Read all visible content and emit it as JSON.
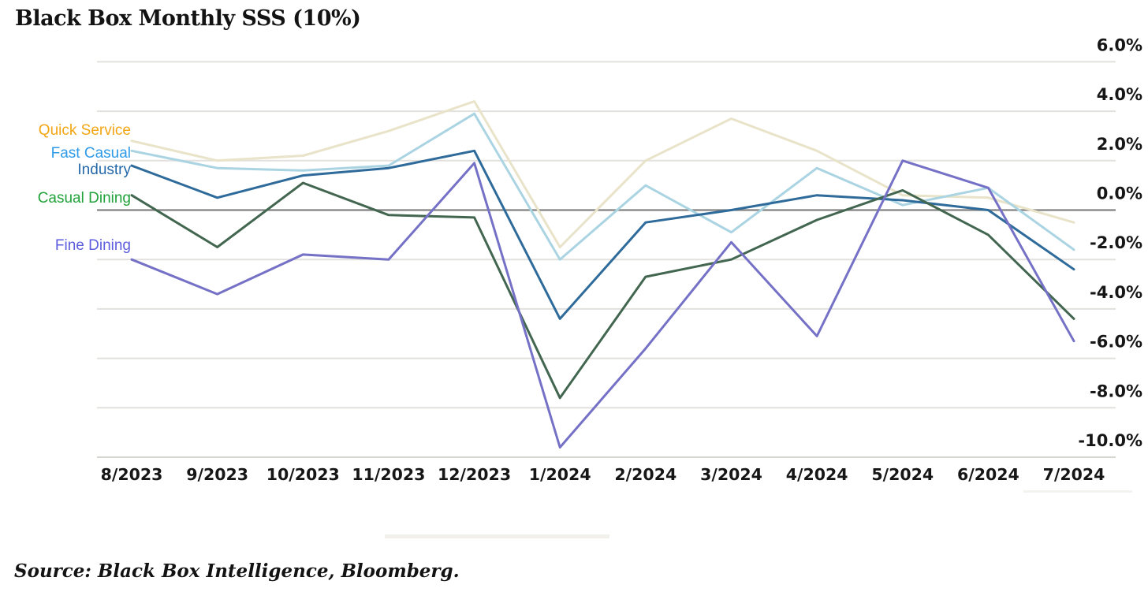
{
  "title": "Black Box Monthly SSS (10%)",
  "source": "Source: Black Box Intelligence, Bloomberg.",
  "chart_data": {
    "type": "line",
    "title": "Black Box Monthly SSS (10%)",
    "x": [
      "8/2023",
      "9/2023",
      "10/2023",
      "11/2023",
      "12/2023",
      "1/2024",
      "2/2024",
      "3/2024",
      "4/2024",
      "5/2024",
      "6/2024",
      "7/2024"
    ],
    "series": [
      {
        "name": "Quick Service",
        "line_color": "#e8e3c9",
        "label_color": "#f2a614",
        "values": [
          2.8,
          2.0,
          2.2,
          3.2,
          4.4,
          -1.5,
          2.0,
          3.7,
          2.4,
          0.6,
          0.5,
          -0.5
        ]
      },
      {
        "name": "Fast Casual",
        "line_color": "#abd4e3",
        "label_color": "#2f9be8",
        "values": [
          2.4,
          1.7,
          1.6,
          1.8,
          3.9,
          -2.0,
          1.0,
          -0.9,
          1.7,
          0.2,
          0.9,
          -1.6
        ]
      },
      {
        "name": "Industry",
        "line_color": "#2f6b9a",
        "label_color": "#2368a9",
        "values": [
          1.8,
          0.5,
          1.4,
          1.7,
          2.4,
          -4.4,
          -0.5,
          0.0,
          0.6,
          0.4,
          0.0,
          -2.4
        ]
      },
      {
        "name": "Casual Dining",
        "line_color": "#42664f",
        "label_color": "#21a23a",
        "values": [
          0.6,
          -1.5,
          1.1,
          -0.2,
          -0.3,
          -7.6,
          -2.7,
          -2.0,
          -0.4,
          0.8,
          -1.0,
          -4.4
        ]
      },
      {
        "name": "Fine Dining",
        "line_color": "#7571c6",
        "label_color": "#5d5ddf",
        "values": [
          -2.0,
          -3.4,
          -1.8,
          -2.0,
          1.9,
          -9.6,
          -5.6,
          -1.3,
          -5.1,
          2.0,
          0.9,
          -5.3
        ]
      }
    ],
    "ylim": [
      -10,
      6
    ],
    "ytick_values": [
      6,
      4,
      2,
      0,
      -2,
      -4,
      -6,
      -8,
      -10
    ],
    "ytick_labels": [
      "6.0%",
      "4.0%",
      "2.0%",
      "0.0%",
      "-2.0%",
      "-4.0%",
      "-6.0%",
      "-8.0%",
      "-10.0%"
    ],
    "grid": true,
    "legend_position": "left",
    "colors": {
      "zero_line": "#828282",
      "gridline": "#e2e1de",
      "bottom_axis": "#d7d5d1",
      "tick_text": "#161616"
    }
  }
}
